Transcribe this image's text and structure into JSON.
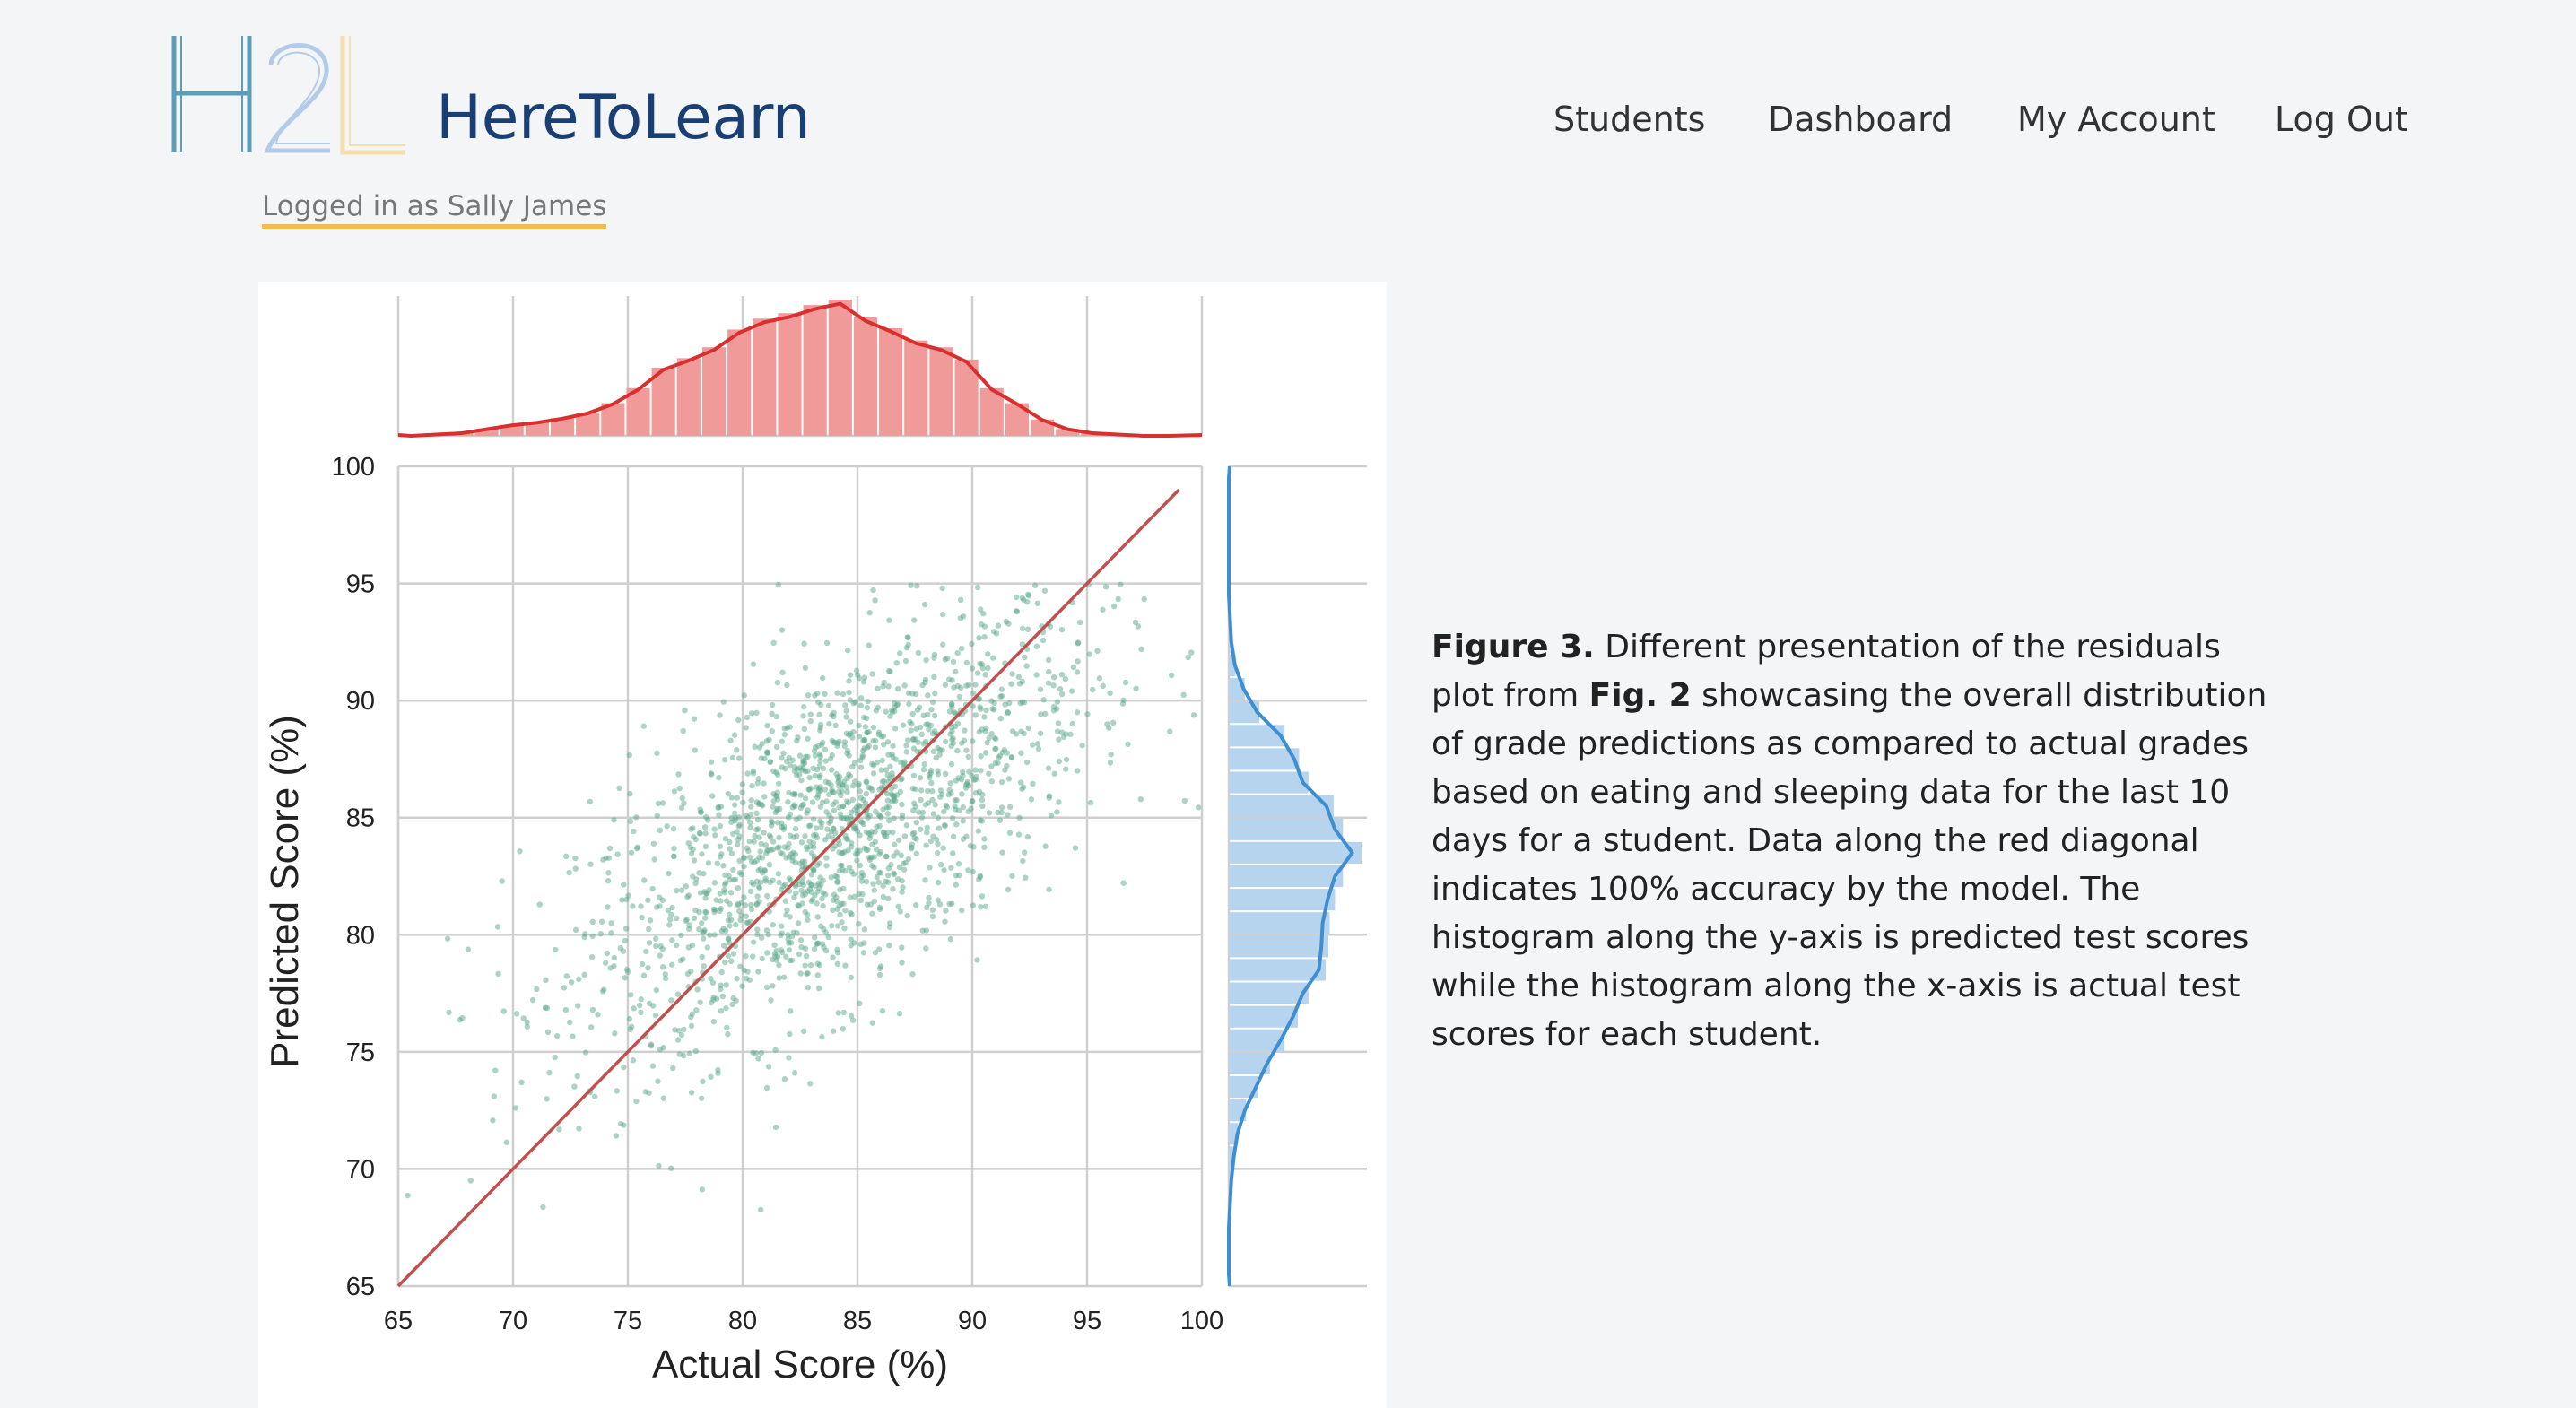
{
  "header": {
    "logo_letters": "H2L",
    "brand_name": "HereToLearn",
    "logged_in_text": "Logged in as Sally James",
    "nav": [
      "Students",
      "Dashboard",
      "My Account",
      "Log Out"
    ]
  },
  "colors": {
    "brand": "#1a3f74",
    "underline": "#f2bd4b",
    "logo_h": "#5d9db8",
    "logo_2": "#b3cbe6",
    "logo_l": "#f5dfae",
    "scatter": "#5aa88a",
    "diagonal": "#c0504d",
    "top_hist": "#f19a9a",
    "top_kde": "#d8302e",
    "right_hist": "#b7d4ee",
    "right_kde": "#3f8ed0"
  },
  "figure": {
    "label": "Figure 3.",
    "ref": "Fig. 2",
    "text_a": "Different presentation of the residuals plot from",
    "text_b": "showcasing the overall distribution of grade predictions as compared to actual grades based on eating and sleeping data for the last 10 days for a student. Data along the red diagonal indicates 100% accuracy by the model. The histogram along the y-axis is predicted test scores while the histogram along the x-axis is actual test scores for each student."
  },
  "chart_data": {
    "type": "scatter",
    "title": "",
    "xlabel": "Actual Score (%)",
    "ylabel": "Predicted Score (%)",
    "xlim": [
      65,
      100
    ],
    "ylim": [
      65,
      100
    ],
    "x_ticks": [
      65,
      70,
      75,
      80,
      85,
      90,
      95,
      100
    ],
    "y_ticks": [
      65,
      70,
      75,
      80,
      85,
      90,
      95,
      100
    ],
    "grid": true,
    "diagonal": {
      "from": [
        65,
        65
      ],
      "to": [
        99,
        99
      ]
    },
    "scatter_summary": {
      "x_center": 84,
      "y_center": 84.5,
      "x_range": [
        65,
        100
      ],
      "y_range": [
        66,
        95
      ],
      "approx_points": 1800
    },
    "top_histogram": {
      "bin_edges_start": 65,
      "bin_width": 1.1,
      "heights": [
        0.0,
        0.01,
        0.02,
        0.05,
        0.08,
        0.1,
        0.13,
        0.17,
        0.24,
        0.35,
        0.5,
        0.57,
        0.65,
        0.78,
        0.86,
        0.9,
        0.96,
        1.0,
        0.87,
        0.79,
        0.7,
        0.65,
        0.56,
        0.35,
        0.24,
        0.12,
        0.05,
        0.02,
        0.01,
        0.0,
        0.0,
        0.0
      ]
    },
    "right_histogram": {
      "bin_edges_start": 65,
      "bin_width": 1.0,
      "heights": [
        0.0,
        0.0,
        0.0,
        0.01,
        0.02,
        0.04,
        0.07,
        0.13,
        0.22,
        0.31,
        0.42,
        0.52,
        0.6,
        0.73,
        0.75,
        0.76,
        0.8,
        0.86,
        1.0,
        0.86,
        0.79,
        0.6,
        0.53,
        0.42,
        0.23,
        0.12,
        0.05,
        0.02,
        0.01,
        0.0,
        0.0,
        0.0,
        0.0,
        0.0,
        0.0
      ]
    }
  }
}
